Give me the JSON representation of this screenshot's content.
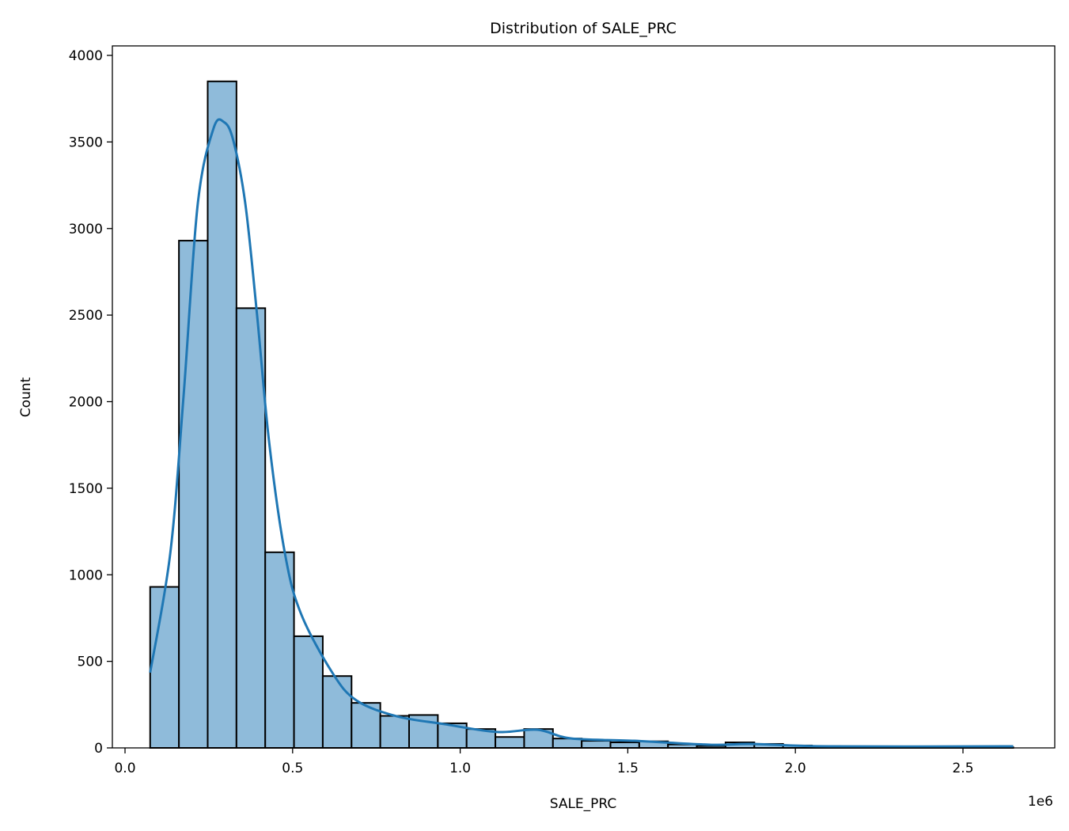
{
  "chart_data": {
    "type": "bar",
    "title": "Distribution of SALE_PRC",
    "xlabel": "SALE_PRC",
    "ylabel": "Count",
    "x_offset_label": "1e6",
    "xlim": [
      -50000,
      2780000
    ],
    "ylim": [
      0,
      4050
    ],
    "x_range_of_bins": [
      75000,
      2650000
    ],
    "bin_counts": [
      930,
      2930,
      3850,
      2540,
      1130,
      645,
      415,
      260,
      185,
      190,
      142,
      109,
      63,
      109,
      54,
      41,
      32,
      38,
      20,
      11,
      32,
      23,
      14,
      10,
      8,
      6,
      5,
      5,
      4,
      4
    ],
    "x_ticks": [
      {
        "value": 0,
        "label": "0.0"
      },
      {
        "value": 500000,
        "label": "0.5"
      },
      {
        "value": 1000000,
        "label": "1.0"
      },
      {
        "value": 1500000,
        "label": "1.5"
      },
      {
        "value": 2000000,
        "label": "2.0"
      },
      {
        "value": 2500000,
        "label": "2.5"
      }
    ],
    "y_ticks": [
      {
        "value": 0,
        "label": "0"
      },
      {
        "value": 500,
        "label": "500"
      },
      {
        "value": 1000,
        "label": "1000"
      },
      {
        "value": 1500,
        "label": "1500"
      },
      {
        "value": 2000,
        "label": "2000"
      },
      {
        "value": 2500,
        "label": "2500"
      },
      {
        "value": 3000,
        "label": "3000"
      },
      {
        "value": 3500,
        "label": "3500"
      },
      {
        "value": 4000,
        "label": "4000"
      }
    ],
    "kde": {
      "x": [
        75000,
        135000,
        175000,
        217000,
        264000,
        295000,
        323000,
        359000,
        394000,
        430000,
        477000,
        524000,
        618000,
        690000,
        810000,
        950000,
        1110000,
        1230000,
        1330000,
        1520000,
        1750000,
        1870000,
        2100000,
        2650000
      ],
      "y": [
        435,
        1124,
        2041,
        3142,
        3578,
        3615,
        3509,
        3142,
        2500,
        1766,
        1124,
        780,
        436,
        275,
        183,
        138,
        92,
        105,
        55,
        41,
        18,
        23,
        9,
        9
      ]
    },
    "grid": false,
    "colors": {
      "bar_fill": "#8fbbda",
      "bar_edge": "#000000",
      "kde_line": "#1f77b4"
    }
  }
}
